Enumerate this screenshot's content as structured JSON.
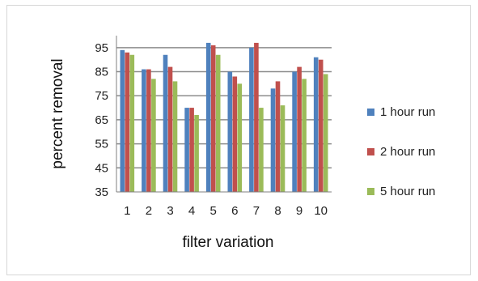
{
  "chart_data": {
    "type": "bar",
    "title": "",
    "xlabel": "filter variation",
    "ylabel": "percent removal",
    "categories": [
      "1",
      "2",
      "3",
      "4",
      "5",
      "6",
      "7",
      "8",
      "9",
      "10"
    ],
    "series": [
      {
        "name": "1 hour run",
        "color": "#4f81bd",
        "values": [
          94,
          86,
          92,
          70,
          97,
          85,
          95,
          78,
          85,
          91
        ]
      },
      {
        "name": "2 hour run",
        "color": "#c0504d",
        "values": [
          93,
          86,
          87,
          70,
          96,
          83,
          97,
          81,
          87,
          90
        ]
      },
      {
        "name": "5 hour run",
        "color": "#9bbb59",
        "values": [
          92,
          82,
          81,
          67,
          92,
          80,
          70,
          71,
          82,
          84
        ]
      }
    ],
    "yticks": [
      35,
      45,
      55,
      65,
      75,
      85,
      95
    ],
    "ylim": [
      35,
      100
    ],
    "grid": true,
    "legend_position": "right"
  }
}
